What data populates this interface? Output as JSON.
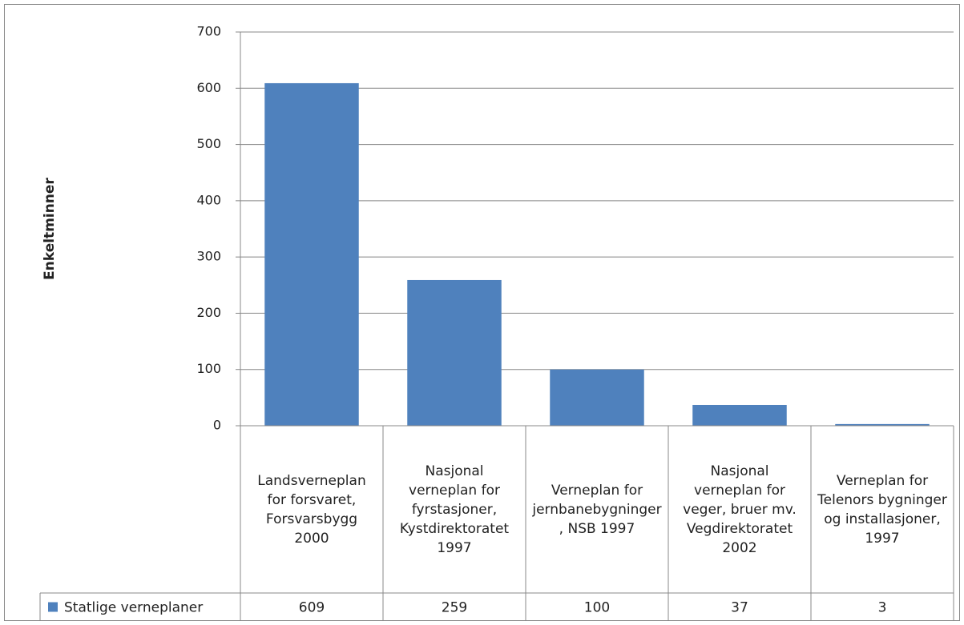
{
  "chart_data": {
    "type": "bar",
    "y_label": "Enkeltminner",
    "categories": [
      "Landsverneplan for forsvaret, Forsvarsbygg 2000",
      "Nasjonal verneplan for fyrstasjoner, Kystdirektoratet 1997",
      "Verneplan for jernbanebygninger, NSB 1997",
      "Nasjonal verneplan for veger, bruer mv. Vegdirektoratet 2002",
      "Verneplan for Telenors bygninger og installasjoner, 1997"
    ],
    "series": [
      {
        "name": "Statlige verneplaner",
        "color": "#4f81bd",
        "values": [
          609,
          259,
          100,
          37,
          3
        ]
      }
    ],
    "ylim": [
      0,
      700
    ],
    "yticks": [
      0,
      100,
      200,
      300,
      400,
      500,
      600,
      700
    ],
    "grid": true
  }
}
